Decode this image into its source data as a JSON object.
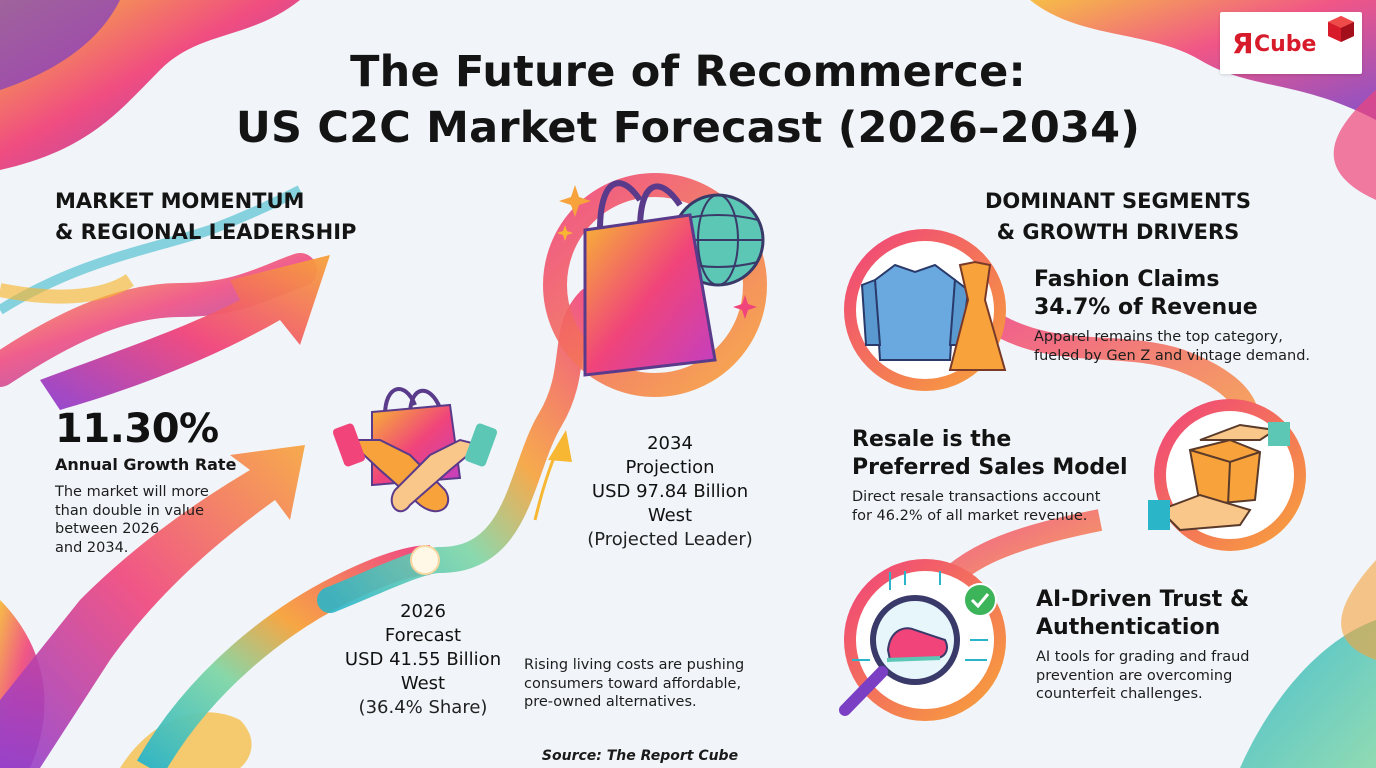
{
  "header": {
    "title_line1": "The Future of Recommerce:",
    "title_line2": "US C2C Market Forecast (2026–2034)"
  },
  "logo": {
    "mark": "Я",
    "text": "Cube"
  },
  "left": {
    "heading_line1": "MARKET MOMENTUM",
    "heading_line2": "& REGIONAL LEADERSHIP",
    "growth_value": "11.30%",
    "growth_label": "Annual Growth Rate",
    "growth_desc_1": "The market will more",
    "growth_desc_2": "than double in value",
    "growth_desc_3": "between 2026",
    "growth_desc_4": "and 2034."
  },
  "center": {
    "y2034": "2034",
    "y2034_label": "Projection",
    "y2034_value": "USD 97.84 Billion",
    "y2034_region": "West",
    "y2034_note": "(Projected Leader)",
    "y2026": "2026",
    "y2026_label": "Forecast",
    "y2026_value": "USD 41.55 Billion",
    "y2026_region": "West",
    "y2026_note": "(36.4% Share)",
    "costs_1": "Rising living costs are pushing",
    "costs_2": "consumers toward affordable,",
    "costs_3": "pre-owned alternatives."
  },
  "right": {
    "heading_line1": "DOMINANT SEGMENTS",
    "heading_line2": "& GROWTH DRIVERS",
    "seg1_title_1": "Fashion Claims",
    "seg1_title_2": "34.7% of Revenue",
    "seg1_desc_1": "Apparel remains the top category,",
    "seg1_desc_2": "fueled by Gen Z and vintage demand.",
    "seg2_title_1": "Resale is the",
    "seg2_title_2": "Preferred Sales Model",
    "seg2_desc_1": "Direct resale transactions account",
    "seg2_desc_2": "for 46.2% of all market revenue.",
    "seg3_title_1": "AI-Driven Trust &",
    "seg3_title_2": "Authentication",
    "seg3_desc_1": "AI tools for grading and fraud",
    "seg3_desc_2": "prevention are overcoming",
    "seg3_desc_3": "counterfeit challenges."
  },
  "footer": {
    "source": "Source: The Report Cube"
  },
  "icons": [
    "shopping-bag-icon",
    "globe-icon",
    "handshake-icon",
    "growth-arrow-icon",
    "apparel-icon",
    "package-hand-icon",
    "magnifier-sneaker-icon",
    "check-badge-icon"
  ],
  "colors": {
    "accent_pink": "#e8388a",
    "accent_orange": "#f7931e",
    "accent_purple": "#7b3fc4",
    "accent_teal": "#2bb5c8",
    "logo_red": "#d81b2a"
  }
}
